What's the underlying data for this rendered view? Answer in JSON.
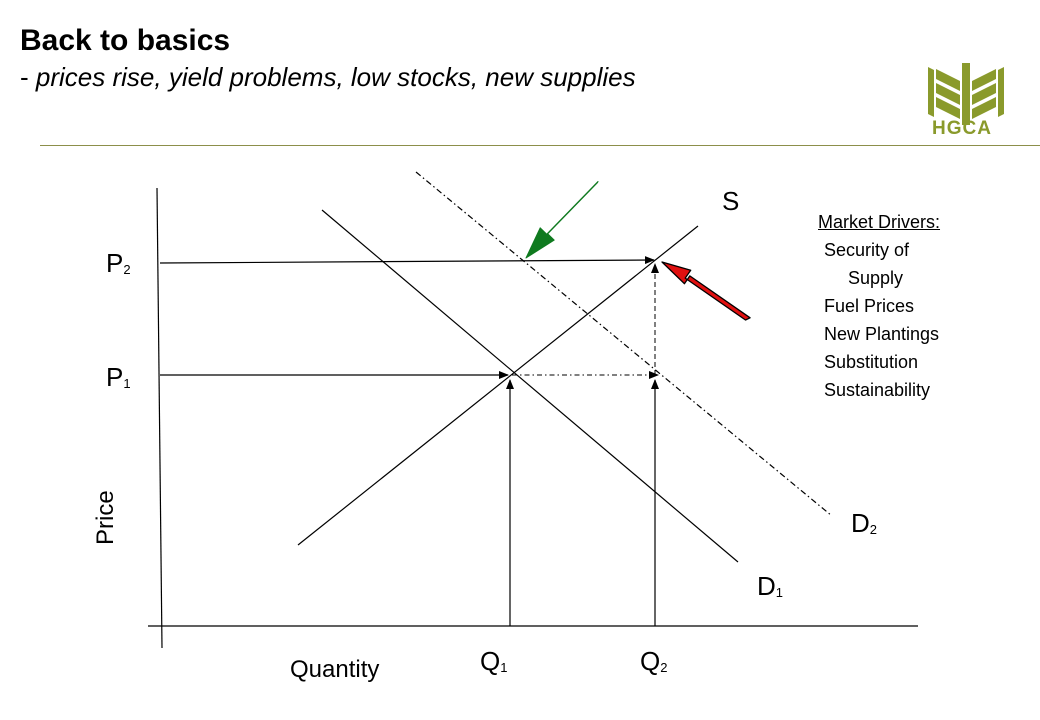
{
  "header": {
    "title": "Back to basics",
    "subtitle_dash": "-",
    "subtitle": "prices rise, yield problems, low stocks, new supplies"
  },
  "logo": {
    "text": "HGCA",
    "color": "#8a9a2c"
  },
  "axes": {
    "y_label": "Price",
    "x_label": "Quantity"
  },
  "labels": {
    "supply": "S",
    "p2": {
      "main": "P",
      "sub": "2"
    },
    "p1": {
      "main": "P",
      "sub": "1"
    },
    "q1": {
      "main": "Q",
      "sub": "1"
    },
    "q2": {
      "main": "Q",
      "sub": "2"
    },
    "d1": {
      "main": "D",
      "sub": "1"
    },
    "d2": {
      "main": "D",
      "sub": "2"
    }
  },
  "market_drivers": {
    "heading": "Market Drivers:",
    "items": [
      "Security of",
      "Supply",
      "Fuel Prices",
      "New Plantings",
      "Substitution",
      "Sustainability"
    ]
  },
  "arrow_colors": {
    "green": "#0f7a1f",
    "red": "#e01010"
  }
}
